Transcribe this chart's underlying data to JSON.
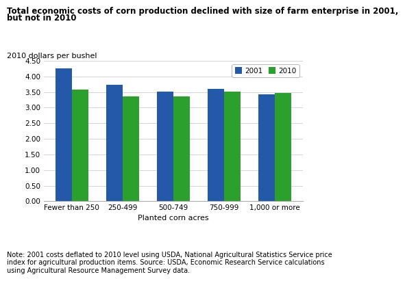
{
  "title_line1": "Total economic costs of corn production declined with size of farm enterprise in 2001,",
  "title_line2": "but not in 2010",
  "ylabel": "2010 dollars per bushel",
  "xlabel": "Planted corn acres",
  "categories": [
    "Fewer than 250",
    "250-499",
    "500-749",
    "750-999",
    "1,000 or more"
  ],
  "values_2001": [
    4.25,
    3.73,
    3.52,
    3.59,
    3.42
  ],
  "values_2010": [
    3.57,
    3.35,
    3.36,
    3.52,
    3.47
  ],
  "color_2001": "#2458A8",
  "color_2010": "#2CA02C",
  "ylim": [
    0.0,
    4.5
  ],
  "yticks": [
    0.0,
    0.5,
    1.0,
    1.5,
    2.0,
    2.5,
    3.0,
    3.5,
    4.0,
    4.5
  ],
  "legend_labels": [
    "2001",
    "2010"
  ],
  "note": "Note: 2001 costs deflated to 2010 level using USDA, National Agricultural Statistics Service price\nindex for agricultural production items. Source: USDA, Economic Research Service calculations\nusing Agricultural Resource Management Survey data.",
  "title_fontsize": 8.5,
  "axis_label_fontsize": 8,
  "tick_fontsize": 7.5,
  "note_fontsize": 7,
  "bar_width": 0.32
}
